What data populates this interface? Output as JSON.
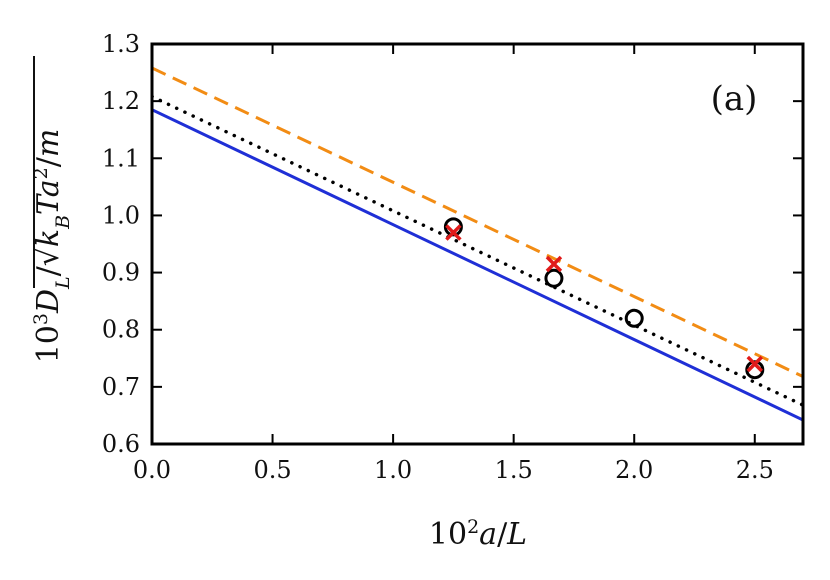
{
  "chart_data": {
    "type": "scatter",
    "annotation": "(a)",
    "xlabel": "10²a/L",
    "ylabel": "10³D_L/√(k_B T a²/m)",
    "xlim": [
      0.0,
      2.7
    ],
    "ylim": [
      0.6,
      1.3
    ],
    "x_ticks": [
      "0.0",
      "0.5",
      "1.0",
      "1.5",
      "2.0",
      "2.5"
    ],
    "y_ticks": [
      "0.6",
      "0.7",
      "0.8",
      "0.9",
      "1.0",
      "1.1",
      "1.2",
      "1.3"
    ],
    "grid": false,
    "series": [
      {
        "style": "solid-line",
        "color": "#1f2fd6",
        "x": [
          0.0,
          2.7
        ],
        "y": [
          1.185,
          0.642
        ]
      },
      {
        "style": "dotted-line",
        "color": "#000000",
        "x": [
          0.0,
          2.7
        ],
        "y": [
          1.208,
          0.668
        ]
      },
      {
        "style": "dashed-line",
        "color": "#f28c14",
        "x": [
          0.0,
          2.7
        ],
        "y": [
          1.258,
          0.718
        ]
      },
      {
        "style": "circle-markers",
        "color": "#000000",
        "x": [
          1.25,
          1.667,
          2.0,
          2.5
        ],
        "y": [
          0.98,
          0.89,
          0.82,
          0.73
        ]
      },
      {
        "style": "cross-markers",
        "color": "#e01a1a",
        "x": [
          1.25,
          1.667,
          2.5
        ],
        "y": [
          0.97,
          0.915,
          0.74
        ]
      }
    ]
  }
}
